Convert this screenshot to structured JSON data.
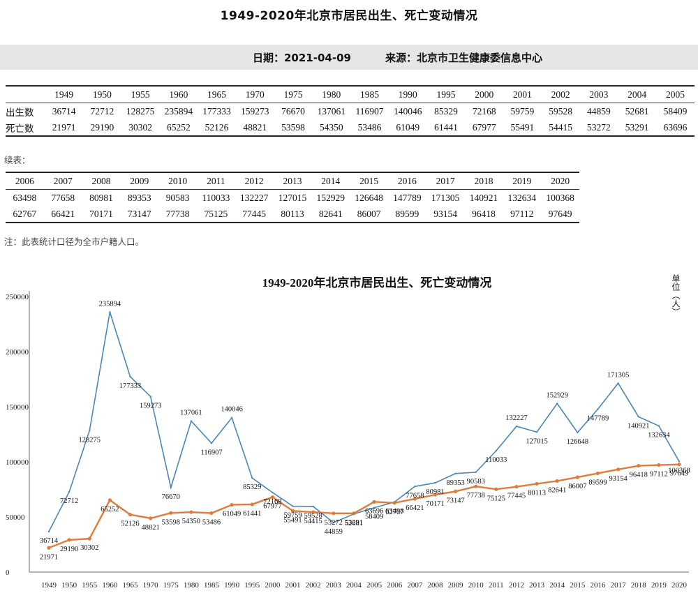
{
  "header": {
    "title": "1949-2020年北京市居民出生、死亡变动情况",
    "date_text": "日期：2021-04-09",
    "source_text": "来源：北京市卫生健康委信息中心"
  },
  "table1": {
    "years": [
      "1949",
      "1950",
      "1955",
      "1960",
      "1965",
      "1970",
      "1975",
      "1980",
      "1985",
      "1990",
      "1995",
      "2000",
      "2001",
      "2002",
      "2003",
      "2004",
      "2005"
    ],
    "rows": [
      {
        "label": "出生数",
        "values": [
          "36714",
          "72712",
          "128275",
          "235894",
          "177333",
          "159273",
          "76670",
          "137061",
          "116907",
          "140046",
          "85329",
          "72168",
          "59759",
          "59528",
          "44859",
          "52681",
          "58409"
        ]
      },
      {
        "label": "死亡数",
        "values": [
          "21971",
          "29190",
          "30302",
          "65252",
          "52126",
          "48821",
          "53598",
          "54350",
          "53486",
          "61049",
          "61441",
          "67977",
          "55491",
          "54415",
          "53272",
          "53291",
          "63696"
        ]
      }
    ]
  },
  "continued_label": "续表：",
  "table2": {
    "years": [
      "2006",
      "2007",
      "2008",
      "2009",
      "2010",
      "2011",
      "2012",
      "2013",
      "2014",
      "2015",
      "2016",
      "2017",
      "2018",
      "2019",
      "2020"
    ],
    "rows": [
      {
        "values": [
          "63498",
          "77658",
          "80981",
          "89353",
          "90583",
          "110033",
          "132227",
          "127015",
          "152929",
          "126648",
          "147789",
          "171305",
          "140921",
          "132634",
          "100368"
        ]
      },
      {
        "values": [
          "62767",
          "66421",
          "70171",
          "73147",
          "77738",
          "75125",
          "77445",
          "80113",
          "82641",
          "86007",
          "89599",
          "93154",
          "96418",
          "97112",
          "97649"
        ]
      }
    ]
  },
  "note": "注：此表统计口径为全市户籍人口。",
  "chart_data": {
    "type": "line",
    "title": "1949-2020年北京市居民出生、死亡变动情况",
    "unit_label": "单位（人）",
    "categories": [
      "1949",
      "1950",
      "1955",
      "1960",
      "1965",
      "1970",
      "1975",
      "1980",
      "1985",
      "1990",
      "1995",
      "2000",
      "2001",
      "2002",
      "2003",
      "2004",
      "2005",
      "2006",
      "2007",
      "2008",
      "2009",
      "2010",
      "2011",
      "2012",
      "2013",
      "2014",
      "2015",
      "2016",
      "2017",
      "2018",
      "2019",
      "2020"
    ],
    "series": [
      {
        "values": [
          36714,
          72712,
          128275,
          235894,
          177333,
          159273,
          76670,
          137061,
          116907,
          140046,
          85329,
          72168,
          59759,
          59528,
          44859,
          52681,
          58409,
          63498,
          77658,
          80981,
          89353,
          90583,
          110033,
          132227,
          127015,
          152929,
          126648,
          147789,
          171305,
          140921,
          132634,
          100368
        ]
      },
      {
        "values": [
          21971,
          29190,
          30302,
          65252,
          52126,
          48821,
          53598,
          54350,
          53486,
          61049,
          61441,
          67977,
          55491,
          54415,
          53272,
          53291,
          63696,
          62767,
          66421,
          70171,
          73147,
          77738,
          75125,
          77445,
          80113,
          82641,
          86007,
          89599,
          93154,
          96418,
          97112,
          97649
        ]
      }
    ],
    "yticks": [
      "250000",
      "200000",
      "150000",
      "100000",
      "50000",
      "0"
    ],
    "ylim": [
      0,
      250000
    ],
    "grid": false,
    "colors": {
      "birth": "#4a86b8",
      "death": "#e07b39"
    }
  }
}
